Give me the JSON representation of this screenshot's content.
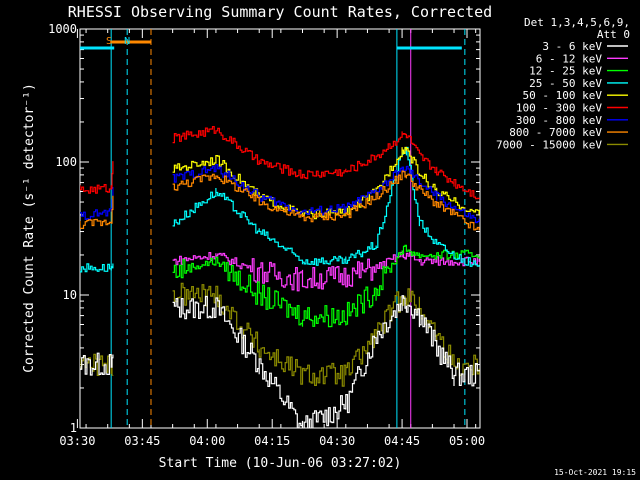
{
  "chart_data": {
    "type": "line",
    "title": "RHESSI Observing Summary Count Rates, Corrected",
    "xlabel": "Start Time (10-Jun-06 03:27:02)",
    "ylabel": "Corrected Count Rate (s⁻¹ detector⁻¹)",
    "yscale": "log",
    "ylim": [
      1,
      1000
    ],
    "xlim_minutes": [
      3.6,
      96.0
    ],
    "x_unit": "minutes after 03:27:02",
    "x_ticks": [
      {
        "label": "03:30",
        "t": 3.0
      },
      {
        "label": "03:45",
        "t": 18.0
      },
      {
        "label": "04:00",
        "t": 33.0
      },
      {
        "label": "04:15",
        "t": 48.0
      },
      {
        "label": "04:30",
        "t": 63.0
      },
      {
        "label": "04:45",
        "t": 78.0
      },
      {
        "label": "05:00",
        "t": 93.0
      }
    ],
    "y_ticks": [
      {
        "label": "1",
        "v": 1
      },
      {
        "label": "10",
        "v": 10
      },
      {
        "label": "100",
        "v": 100
      },
      {
        "label": "1000",
        "v": 1000
      }
    ],
    "legend_header": [
      "Det 1,3,4,5,6,9,",
      "Att 0"
    ],
    "legend_position": "right",
    "x": [
      0,
      10.8,
      11.2,
      22,
      25,
      35,
      45,
      55,
      65,
      72,
      78,
      79,
      82,
      86,
      90,
      95.8
    ],
    "series": [
      {
        "name": "3 - 6 keV",
        "color": "#ffffff",
        "values": [
          3,
          3,
          3,
          null,
          8,
          8,
          3,
          1,
          1.5,
          5,
          9,
          9,
          7,
          4,
          2.5,
          2.5
        ]
      },
      {
        "name": "6 - 12 keV",
        "color": "#ff3cff",
        "values": [
          null,
          null,
          null,
          null,
          18,
          20,
          15,
          13,
          14,
          16,
          20,
          20,
          18,
          18,
          18,
          18
        ]
      },
      {
        "name": "12 - 25 keV",
        "color": "#00ff00",
        "values": [
          null,
          null,
          null,
          null,
          15,
          18,
          10,
          7,
          7,
          11,
          22,
          22,
          20,
          20,
          20,
          20
        ]
      },
      {
        "name": "25 - 50 keV",
        "color": "#00ffff",
        "values": [
          16,
          16,
          16,
          null,
          34,
          60,
          30,
          18,
          18,
          24,
          120,
          120,
          35,
          24,
          20,
          16
        ]
      },
      {
        "name": "50 - 100 keV",
        "color": "#ffff00",
        "values": [
          null,
          null,
          null,
          null,
          88,
          105,
          55,
          40,
          42,
          60,
          125,
          125,
          82,
          60,
          50,
          40
        ]
      },
      {
        "name": "100 - 300 keV",
        "color": "#ff0000",
        "values": [
          60,
          64,
          110,
          null,
          150,
          175,
          100,
          80,
          85,
          110,
          160,
          160,
          110,
          85,
          70,
          55
        ]
      },
      {
        "name": "300 - 800 keV",
        "color": "#0000ff",
        "values": [
          38,
          42,
          70,
          null,
          75,
          90,
          55,
          42,
          45,
          60,
          88,
          88,
          70,
          55,
          45,
          35
        ]
      },
      {
        "name": "800 - 7000 keV",
        "color": "#ff8800",
        "values": [
          33,
          36,
          60,
          null,
          65,
          80,
          50,
          38,
          40,
          55,
          80,
          80,
          62,
          48,
          40,
          30
        ]
      },
      {
        "name": "7000 - 15000 keV",
        "color": "#8b8b00",
        "values": [
          3,
          3,
          3,
          null,
          10,
          10,
          4,
          2.5,
          2.5,
          5,
          10,
          10,
          8,
          5,
          3,
          3
        ]
      }
    ],
    "vertical_markers": [
      {
        "t": 10.8,
        "color": "#00e5ff",
        "style": "solid"
      },
      {
        "t": 14.5,
        "color": "#00e5ff",
        "style": "dashed"
      },
      {
        "t": 20.0,
        "color": "#ff8800",
        "style": "dashed"
      },
      {
        "t": 76.8,
        "color": "#00e5ff",
        "style": "solid"
      },
      {
        "t": 80.0,
        "color": "#ff3cff",
        "style": "solid"
      },
      {
        "t": 92.5,
        "color": "#00e5ff",
        "style": "dashed"
      }
    ],
    "top_bars": [
      {
        "t0": 0.0,
        "t1": 11.5,
        "color": "#00e5ff"
      },
      {
        "t0": 76.8,
        "t1": 91.8,
        "color": "#00e5ff"
      },
      {
        "t0": 10.8,
        "t1": 20.0,
        "color": "#ff8800"
      }
    ],
    "annotations": [
      {
        "text": "S",
        "t": 10.3,
        "color": "#ff8800"
      },
      {
        "text": "N",
        "t": 14.5,
        "color": "#00e5ff"
      }
    ],
    "footer_timestamp": "15-Oct-2021 19:15"
  }
}
